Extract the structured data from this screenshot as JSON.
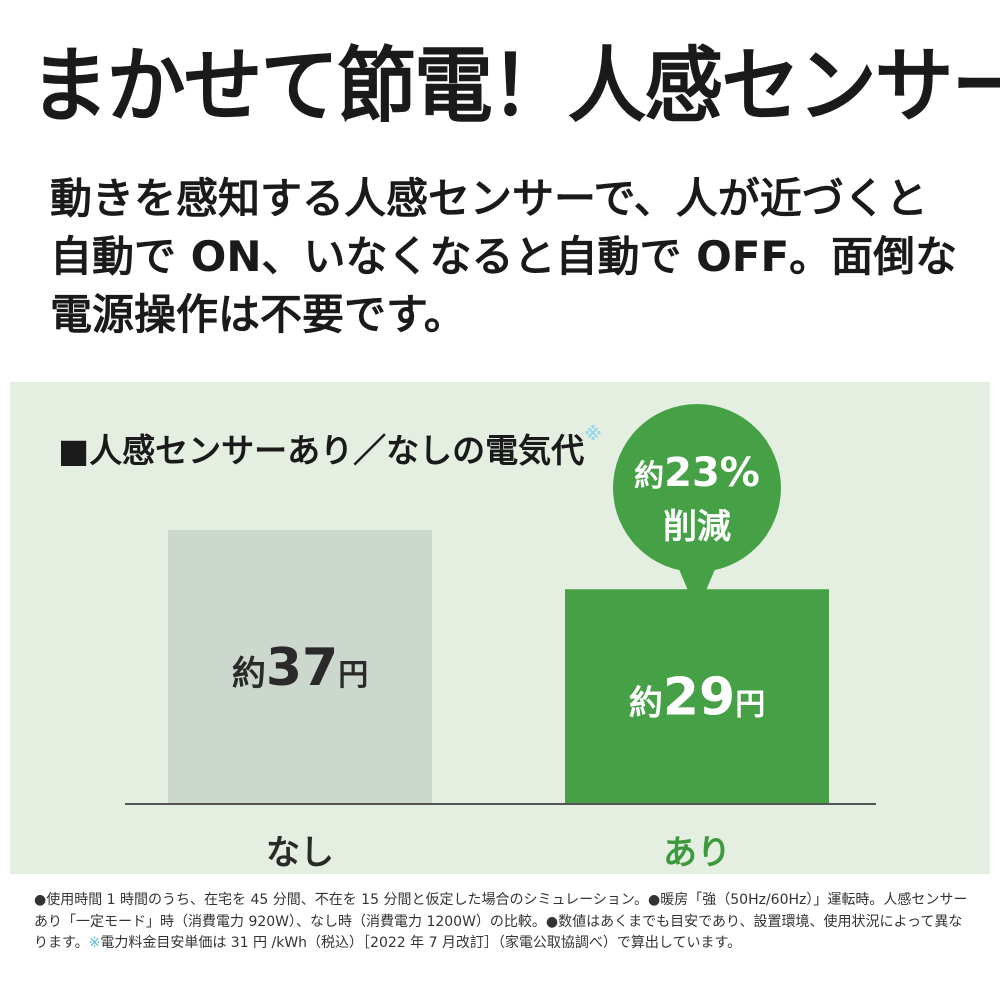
{
  "headline": "まかせて節電！人感センサー",
  "lead": "動きを感知する人感センサーで、人が近づくと自動で ON、いなくなると自動で OFF。面倒な電源操作は不要です。",
  "colors": {
    "panel_bg": "#e4efe1",
    "bar_without": "#ccd7ce",
    "bar_with": "#46a045",
    "axis": "#555555",
    "with_label": "#3c9a3c",
    "note_mark": "#5bbfd6"
  },
  "chart_data": {
    "type": "bar",
    "title": "■人感センサーあり／なしの電気代",
    "title_mark": "※",
    "categories": [
      "なし",
      "あり"
    ],
    "values": [
      37,
      29
    ],
    "unit": "円",
    "data_labels": [
      {
        "prefix": "約",
        "number": "37",
        "unit": "円"
      },
      {
        "prefix": "約",
        "number": "29",
        "unit": "円"
      }
    ],
    "callout": {
      "line1_prefix": "約",
      "line1_value": "23%",
      "line2": "削減"
    },
    "ylim": [
      0,
      37
    ],
    "grid": false,
    "legend": "none"
  },
  "footnote": {
    "part1": "●使用時間 1 時間のうち、在宅を 45 分間、不在を 15 分間と仮定した場合のシミュレーション。●暖房「強（50Hz/60Hz）」運転時。人感センサーあり「一定モード」時（消費電力 920W）、なし時（消費電力 1200W）の比較。●数値はあくまでも目安であり、設置環境、使用状況によって異なります。",
    "mark": "※",
    "part2": "電力料金目安単価は 31 円 /kWh（税込）［2022 年 7 月改訂］（家電公取協調べ）で算出しています。"
  }
}
